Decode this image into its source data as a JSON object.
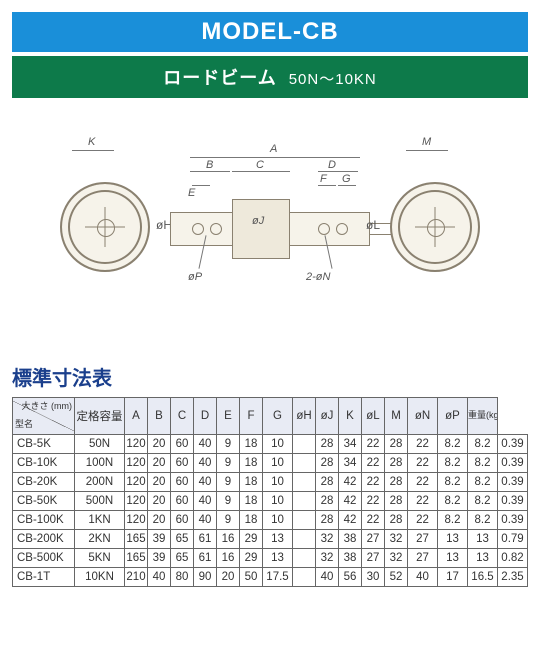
{
  "header": {
    "title": "MODEL-CB",
    "subtitle_main": "ロードビーム",
    "subtitle_range": "50N～10KN"
  },
  "diagram": {
    "labels": {
      "K": "K",
      "M": "M",
      "phiH": "øH",
      "phiL": "øL",
      "A": "A",
      "B": "B",
      "C": "C",
      "D": "D",
      "E": "E",
      "F": "F",
      "G": "G",
      "phiJ": "øJ",
      "phiP": "øP",
      "phiN": "2-øN"
    }
  },
  "table": {
    "title": "標準寸法表",
    "title_color": "#1a3f8c",
    "header_corner_top": "大きさ (mm)",
    "header_corner_bottom": "型名",
    "columns": [
      "定格容量",
      "A",
      "B",
      "C",
      "D",
      "E",
      "F",
      "G",
      "øH",
      "øJ",
      "K",
      "øL",
      "M",
      "øN",
      "øP",
      "重量(kg)"
    ],
    "rows": [
      {
        "model": "CB-5K",
        "cap": "50N",
        "v": [
          "120",
          "20",
          "60",
          "40",
          "9",
          "18",
          "10",
          "",
          "28",
          "34",
          "22",
          "28",
          "22",
          "8.2",
          "8.2",
          "0.39"
        ]
      },
      {
        "model": "CB-10K",
        "cap": "100N",
        "v": [
          "120",
          "20",
          "60",
          "40",
          "9",
          "18",
          "10",
          "",
          "28",
          "34",
          "22",
          "28",
          "22",
          "8.2",
          "8.2",
          "0.39"
        ]
      },
      {
        "model": "CB-20K",
        "cap": "200N",
        "v": [
          "120",
          "20",
          "60",
          "40",
          "9",
          "18",
          "10",
          "",
          "28",
          "42",
          "22",
          "28",
          "22",
          "8.2",
          "8.2",
          "0.39"
        ]
      },
      {
        "model": "CB-50K",
        "cap": "500N",
        "v": [
          "120",
          "20",
          "60",
          "40",
          "9",
          "18",
          "10",
          "",
          "28",
          "42",
          "22",
          "28",
          "22",
          "8.2",
          "8.2",
          "0.39"
        ]
      },
      {
        "model": "CB-100K",
        "cap": "1KN",
        "v": [
          "120",
          "20",
          "60",
          "40",
          "9",
          "18",
          "10",
          "",
          "28",
          "42",
          "22",
          "28",
          "22",
          "8.2",
          "8.2",
          "0.39"
        ]
      },
      {
        "model": "CB-200K",
        "cap": "2KN",
        "v": [
          "165",
          "39",
          "65",
          "61",
          "16",
          "29",
          "13",
          "",
          "32",
          "38",
          "27",
          "32",
          "27",
          "13",
          "13",
          "0.79"
        ]
      },
      {
        "model": "CB-500K",
        "cap": "5KN",
        "v": [
          "165",
          "39",
          "65",
          "61",
          "16",
          "29",
          "13",
          "",
          "32",
          "38",
          "27",
          "32",
          "27",
          "13",
          "13",
          "0.82"
        ]
      },
      {
        "model": "CB-1T",
        "cap": "10KN",
        "v": [
          "210",
          "40",
          "80",
          "90",
          "20",
          "50",
          "17.5",
          "",
          "40",
          "56",
          "30",
          "52",
          "40",
          "17",
          "16.5",
          "2.35"
        ]
      }
    ]
  }
}
